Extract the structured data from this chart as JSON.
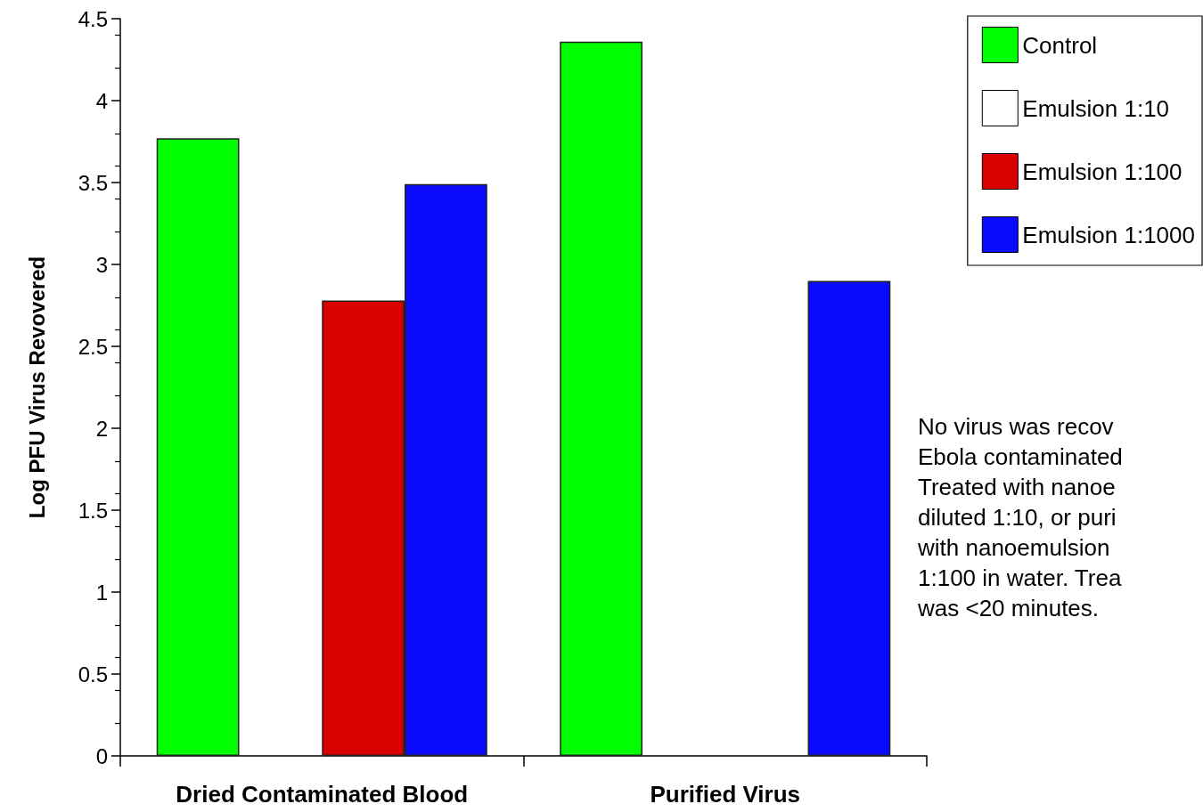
{
  "chart_data": {
    "type": "bar",
    "ylabel": "Log PFU Virus Revovered",
    "categories": [
      "Dried Contaminated Blood",
      "Purified Virus"
    ],
    "series": [
      {
        "name": "Control",
        "color": "#00ff00",
        "values": [
          3.77,
          4.36
        ]
      },
      {
        "name": "Emulsion 1:10",
        "color": "#ffffff",
        "values": [
          null,
          null
        ]
      },
      {
        "name": "Emulsion 1:100",
        "color": "#d90000",
        "values": [
          2.78,
          null
        ]
      },
      {
        "name": "Emulsion 1:1000",
        "color": "#0a0aff",
        "values": [
          3.49,
          2.9
        ]
      }
    ],
    "ylim": [
      0,
      4.5
    ],
    "yticks": [
      0,
      0.5,
      1,
      1.5,
      2,
      2.5,
      3,
      3.5,
      4,
      4.5
    ],
    "grid": false,
    "legend": "top right",
    "annotations": [
      "No virus was recov\nEbola contaminated\nTreated with nanoe\ndiluted 1:10, or puri\nwith nanoemulsion\n1:100 in water. Trea\nwas <20 minutes."
    ]
  }
}
